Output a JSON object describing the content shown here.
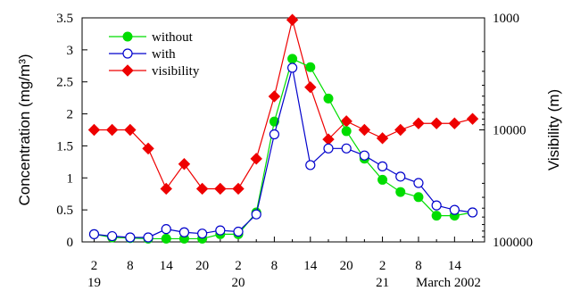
{
  "chart_data": {
    "type": "line",
    "x_tick_labels": [
      "2",
      "8",
      "14",
      "20",
      "2",
      "8",
      "14",
      "20",
      "2",
      "8",
      "14"
    ],
    "x_day_labels": [
      "19",
      "20",
      "21"
    ],
    "x_date_label": "March 2002",
    "ylabel_left": "Concentration (mg/m³)",
    "ylabel_right": "Visibility (m)",
    "ylim_left": [
      0,
      3.5
    ],
    "yticks_left": [
      "0",
      "0.5",
      "1",
      "1.5",
      "2",
      "2.5",
      "3",
      "3.5"
    ],
    "yticks_right": [
      "1000",
      "10000",
      "100000"
    ],
    "right_axis_scale": "log, inverted (1000 at top, 100000 at bottom)",
    "x_hours": [
      2,
      5,
      8,
      11,
      14,
      17,
      20,
      23,
      26,
      29,
      32,
      35,
      38,
      41,
      44,
      47,
      50,
      53,
      56,
      59,
      62,
      65
    ],
    "legend_position": "top-left",
    "series": [
      {
        "name": "without",
        "axis": "left",
        "color": "#00dd00",
        "marker": "filled-circle",
        "values": [
          0.12,
          0.07,
          0.06,
          0.05,
          0.05,
          0.05,
          0.05,
          0.12,
          0.12,
          0.46,
          1.88,
          2.86,
          2.73,
          2.24,
          1.73,
          1.3,
          0.97,
          0.78,
          0.7,
          0.41,
          0.41,
          0.46
        ]
      },
      {
        "name": "with",
        "axis": "left",
        "color": "#0000cc",
        "marker": "open-circle",
        "values": [
          0.12,
          0.09,
          0.07,
          0.07,
          0.2,
          0.15,
          0.13,
          0.18,
          0.16,
          0.43,
          1.68,
          2.72,
          1.2,
          1.46,
          1.46,
          1.35,
          1.18,
          1.02,
          0.92,
          0.57,
          0.5,
          0.46
        ]
      },
      {
        "name": "visibility",
        "axis": "right",
        "color": "#ee0000",
        "marker": "filled-diamond",
        "values": [
          9999,
          9999,
          9999,
          14674,
          33545,
          20174,
          33545,
          33545,
          33545,
          18098,
          5023,
          1042,
          4160,
          12142,
          8377,
          9999,
          11865,
          9999,
          8751,
          8751,
          8751,
          7976
        ]
      }
    ]
  }
}
